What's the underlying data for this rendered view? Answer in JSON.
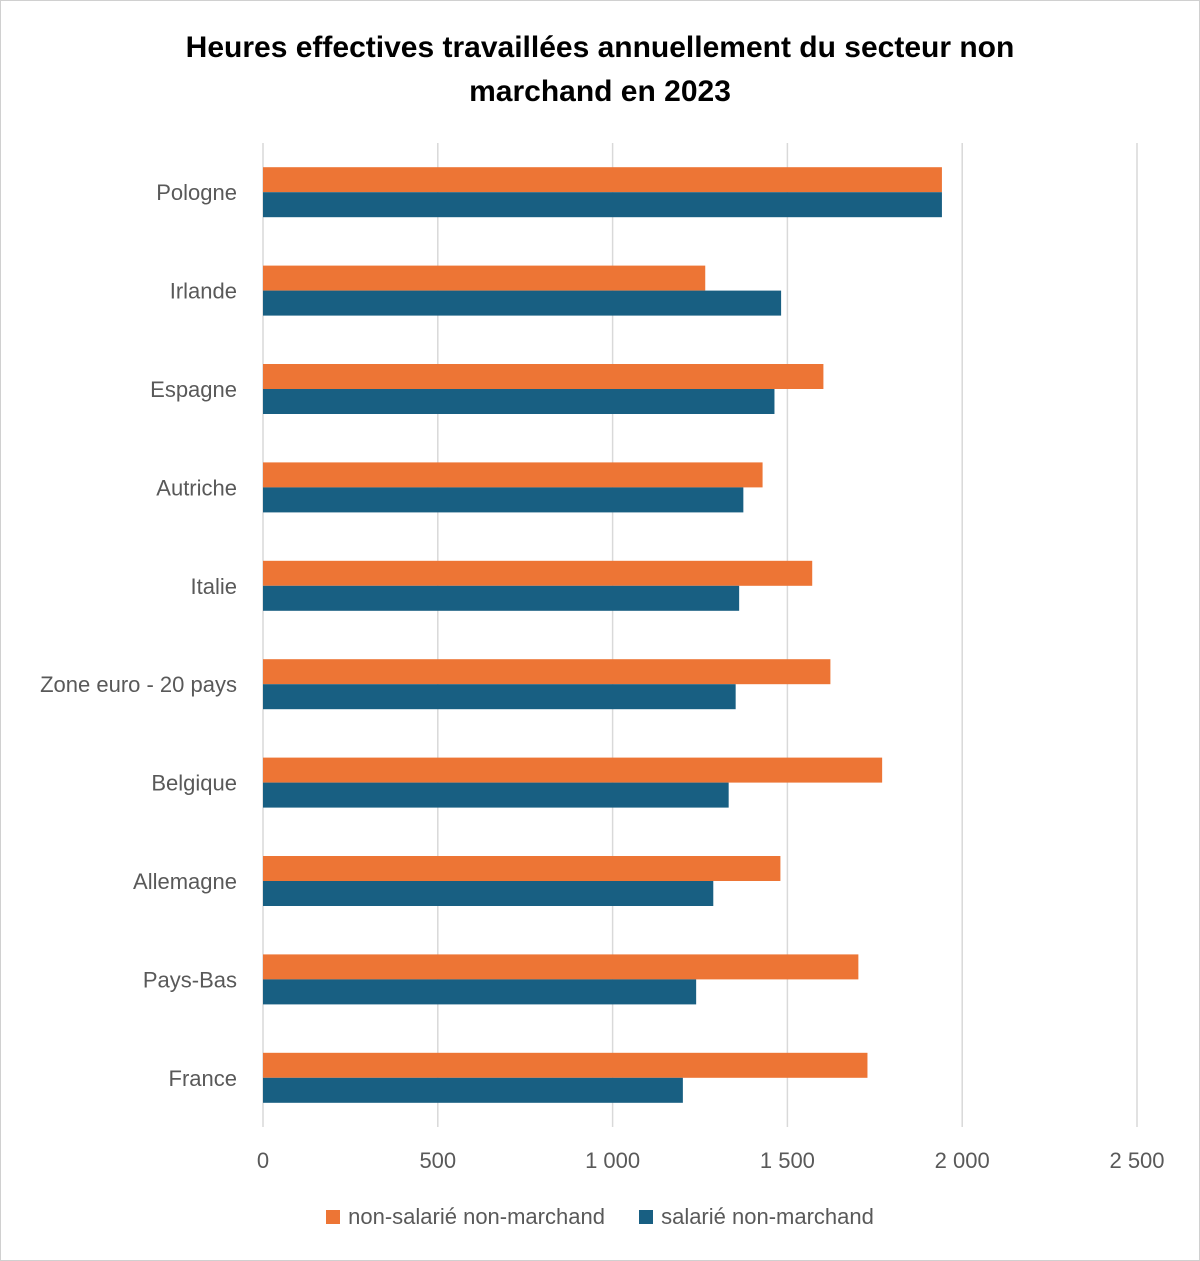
{
  "colors": {
    "non_salarie": "#ED7535",
    "salarie": "#185F82",
    "grid": "#D9D9D9",
    "text": "#595959"
  },
  "chart_data": {
    "type": "bar",
    "orientation": "horizontal",
    "title_line1": "Heures effectives travaillées annuellement du secteur non",
    "title_line2": "marchand en 2023",
    "categories": [
      "Pologne",
      "Irlande",
      "Espagne",
      "Autriche",
      "Italie",
      "Zone euro - 20 pays",
      "Belgique",
      "Allemagne",
      "Pays-Bas",
      "France"
    ],
    "series": [
      {
        "name": "non-salarié non-marchand",
        "values": [
          1942,
          1265,
          1603,
          1429,
          1571,
          1623,
          1771,
          1480,
          1703,
          1729
        ]
      },
      {
        "name": "salarié non-marchand",
        "values": [
          1942,
          1482,
          1463,
          1374,
          1362,
          1352,
          1332,
          1288,
          1239,
          1201
        ]
      }
    ],
    "xlim": [
      0,
      2500
    ],
    "xticks": [
      0,
      500,
      1000,
      1500,
      2000,
      2500
    ],
    "xtick_labels": [
      "0",
      "500",
      "1 000",
      "1 500",
      "2 000",
      "2 500"
    ],
    "grid": true,
    "legend_position": "bottom"
  }
}
